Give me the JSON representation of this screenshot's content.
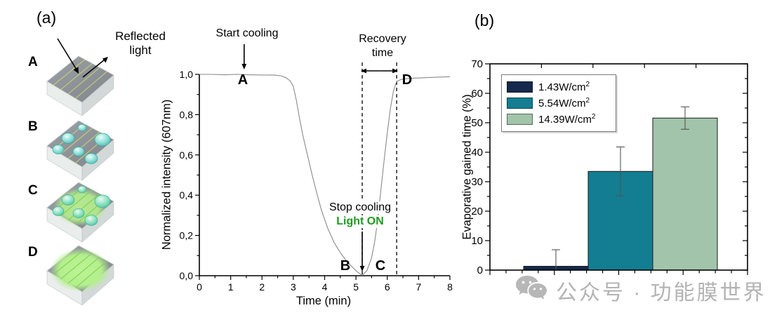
{
  "figure": {
    "panel_a_label": "(a)",
    "panel_b_label": "(b)"
  },
  "panel_a": {
    "reflected_light_line1": "Reflected",
    "reflected_light_line2": "light",
    "stages": [
      {
        "letter": "A",
        "droplets": false,
        "glow": false
      },
      {
        "letter": "B",
        "droplets": true,
        "glow": false
      },
      {
        "letter": "C",
        "droplets": true,
        "glow": true
      },
      {
        "letter": "D",
        "droplets": false,
        "glow": true
      }
    ]
  },
  "chart_data": [
    {
      "type": "line",
      "title": "",
      "xlabel": "Time (min)",
      "ylabel": "Normalized intensity (607nm)",
      "xlim": [
        0,
        8
      ],
      "ylim": [
        0,
        1.0
      ],
      "grid": false,
      "x_tick_labels": [
        "0",
        "1",
        "2",
        "3",
        "4",
        "5",
        "6",
        "7",
        "8"
      ],
      "y_tick_labels": [
        "0,0",
        "0,2",
        "0,4",
        "0,6",
        "0,8",
        "1,0"
      ],
      "series": [
        {
          "name": "normalized-intensity-607nm",
          "color": "#8a8a8a",
          "points": [
            [
              0,
              1.0
            ],
            [
              0.4,
              1.0
            ],
            [
              0.8,
              0.998
            ],
            [
              1.2,
              1.0
            ],
            [
              1.6,
              0.998
            ],
            [
              2.0,
              0.997
            ],
            [
              2.4,
              0.996
            ],
            [
              2.6,
              0.993
            ],
            [
              2.75,
              0.985
            ],
            [
              2.9,
              0.968
            ],
            [
              3.0,
              0.94
            ],
            [
              3.1,
              0.87
            ],
            [
              3.2,
              0.78
            ],
            [
              3.3,
              0.7
            ],
            [
              3.45,
              0.6
            ],
            [
              3.6,
              0.5
            ],
            [
              3.75,
              0.41
            ],
            [
              3.9,
              0.325
            ],
            [
              4.1,
              0.235
            ],
            [
              4.3,
              0.165
            ],
            [
              4.5,
              0.115
            ],
            [
              4.7,
              0.072
            ],
            [
              4.9,
              0.04
            ],
            [
              5.05,
              0.018
            ],
            [
              5.2,
              0.002
            ],
            [
              5.35,
              0.025
            ],
            [
              5.5,
              0.09
            ],
            [
              5.6,
              0.17
            ],
            [
              5.7,
              0.285
            ],
            [
              5.8,
              0.43
            ],
            [
              5.9,
              0.575
            ],
            [
              6.0,
              0.71
            ],
            [
              6.1,
              0.83
            ],
            [
              6.2,
              0.92
            ],
            [
              6.3,
              0.965
            ],
            [
              6.45,
              0.975
            ],
            [
              6.7,
              0.98
            ],
            [
              7.0,
              0.982
            ],
            [
              7.4,
              0.985
            ],
            [
              8.0,
              0.988
            ]
          ]
        }
      ],
      "annotations": {
        "start_cooling": "Start cooling",
        "recovery_line1": "Recovery",
        "recovery_line2": "time",
        "stop_cooling": "Stop cooling",
        "light_on": "Light ON",
        "light_on_color": "#1d9b1f",
        "point_a": "A",
        "point_b": "B",
        "point_c": "C",
        "point_d": "D",
        "dashed_x": [
          5.2,
          6.3
        ],
        "start_cooling_arrow_x": 1.43,
        "stop_cooling_arrow_x": 5.2
      }
    },
    {
      "type": "bar",
      "title": "",
      "xlabel": "",
      "ylabel": "Evaporative gained time (%)",
      "ylim": [
        0,
        70
      ],
      "y_ticks": [
        0,
        10,
        20,
        30,
        40,
        50,
        60,
        70
      ],
      "grid": false,
      "legend_position": "top-left",
      "series": [
        {
          "name": "1.43W/cm²",
          "label_base": "1.43W/cm",
          "label_sup": "2",
          "value": 1.3,
          "error": 5.6,
          "color": "#15294e"
        },
        {
          "name": "5.54W/cm²",
          "label_base": "5.54W/cm",
          "label_sup": "2",
          "value": 33.5,
          "error": 8.3,
          "color": "#137d92"
        },
        {
          "name": "14.39W/cm²",
          "label_base": "14.39W/cm",
          "label_sup": "2",
          "value": 51.6,
          "error": 3.8,
          "color": "#a2c4aa"
        }
      ]
    }
  ],
  "watermark": {
    "icon": "wechat-icon",
    "text": "公众号 · 功能膜世界"
  }
}
